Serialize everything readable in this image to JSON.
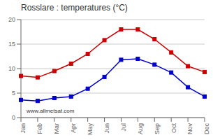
{
  "chart_data": {
    "type": "line",
    "title": "Rosslare : temperatures (°C)",
    "categories": [
      "Jan",
      "Feb",
      "Mar",
      "Apr",
      "May",
      "Jun",
      "Jul",
      "Aug",
      "Sep",
      "Oct",
      "Nov",
      "Dec"
    ],
    "series": [
      {
        "color": "#cc0000",
        "values": [
          8.5,
          8.2,
          9.5,
          11.0,
          13.0,
          15.8,
          18.0,
          18.0,
          16.0,
          13.3,
          10.5,
          9.3
        ]
      },
      {
        "color": "#0000cc",
        "values": [
          3.6,
          3.4,
          4.0,
          4.3,
          5.9,
          8.3,
          11.8,
          12.0,
          10.8,
          9.2,
          6.2,
          4.3
        ]
      }
    ],
    "ylim": [
      0,
      20
    ],
    "yticks": [
      0,
      5,
      10,
      15,
      20
    ],
    "grid": true,
    "marker": "square",
    "annotation": "www.allmetsat.com"
  }
}
